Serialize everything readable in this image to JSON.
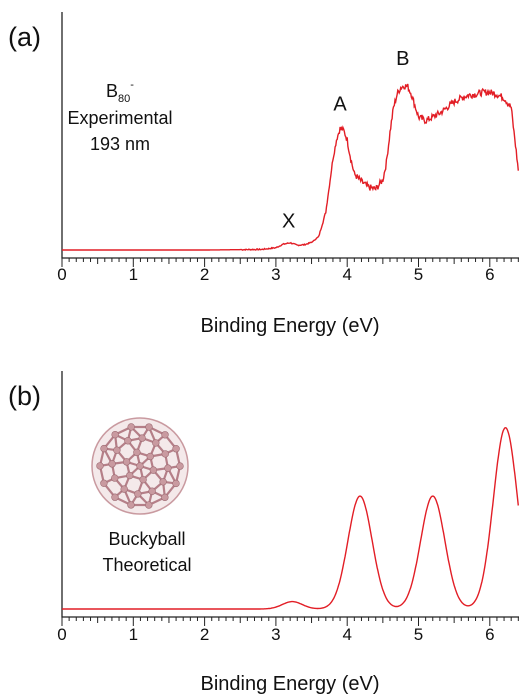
{
  "colors": {
    "curve": "#e21e26",
    "axis": "#222222",
    "bucky_atom": "#c99aa0",
    "bucky_bond": "#b57f88"
  },
  "panels": [
    {
      "panel_label": "(a)",
      "xlabel": "Binding Energy (eV)",
      "annotation": {
        "species_base": "B",
        "species_sub": "80",
        "species_sup": "-",
        "line1": "Experimental",
        "line2": "193 nm"
      },
      "peak_labels": [
        {
          "text": "X",
          "x": 3.18,
          "y": 0.045
        },
        {
          "text": "A",
          "x": 3.9,
          "y": 0.66
        },
        {
          "text": "B",
          "x": 4.78,
          "y": 0.9
        }
      ]
    },
    {
      "panel_label": "(b)",
      "xlabel": "Binding Energy (eV)",
      "annotation": {
        "line1": "Buckyball",
        "line2": "Theoretical"
      },
      "peak_labels": []
    }
  ],
  "chart_data": [
    {
      "type": "line",
      "title": "",
      "xlabel": "Binding Energy (eV)",
      "ylabel": "",
      "xlim": [
        0,
        6.4
      ],
      "ylim": [
        0,
        1
      ],
      "xticks": [
        0,
        1,
        2,
        3,
        4,
        5,
        6
      ],
      "grid": false,
      "series": [
        {
          "x": [
            0,
            1,
            2,
            2.8,
            3.0,
            3.1,
            3.2,
            3.3,
            3.4,
            3.5,
            3.6,
            3.7,
            3.75,
            3.8,
            3.85,
            3.9,
            3.95,
            4.0,
            4.05,
            4.1,
            4.2,
            4.3,
            4.4,
            4.5,
            4.55,
            4.6,
            4.65,
            4.7,
            4.75,
            4.8,
            4.85,
            4.9,
            4.95,
            5.0,
            5.1,
            5.2,
            5.3,
            5.4,
            5.5,
            5.6,
            5.7,
            5.8,
            5.9,
            6.0,
            6.1,
            6.2,
            6.3,
            6.4
          ],
          "y": [
            0.0,
            0.0,
            0.0,
            0.003,
            0.012,
            0.03,
            0.038,
            0.025,
            0.028,
            0.04,
            0.07,
            0.2,
            0.34,
            0.48,
            0.58,
            0.64,
            0.63,
            0.58,
            0.48,
            0.4,
            0.36,
            0.33,
            0.32,
            0.37,
            0.46,
            0.62,
            0.75,
            0.82,
            0.855,
            0.865,
            0.86,
            0.82,
            0.76,
            0.7,
            0.68,
            0.7,
            0.72,
            0.75,
            0.78,
            0.8,
            0.815,
            0.82,
            0.83,
            0.83,
            0.82,
            0.8,
            0.75,
            0.42
          ]
        }
      ]
    },
    {
      "type": "line",
      "title": "",
      "xlabel": "Binding Energy (eV)",
      "ylabel": "",
      "xlim": [
        0,
        6.4
      ],
      "ylim": [
        0,
        1
      ],
      "xticks": [
        0,
        1,
        2,
        3,
        4,
        5,
        6
      ],
      "grid": false,
      "peaks": [
        {
          "center": 3.23,
          "height": 0.04,
          "width": 0.14
        },
        {
          "center": 4.18,
          "height": 0.61,
          "width": 0.17
        },
        {
          "center": 5.2,
          "height": 0.61,
          "width": 0.17
        },
        {
          "center": 6.22,
          "height": 0.98,
          "width": 0.17
        }
      ],
      "series": [
        {
          "x": [
            0,
            3.0,
            3.1,
            3.23,
            3.35,
            3.5,
            3.8,
            4.0,
            4.1,
            4.18,
            4.26,
            4.4,
            4.6,
            4.7,
            4.8,
            5.0,
            5.1,
            5.2,
            5.3,
            5.4,
            5.6,
            5.7,
            5.8,
            6.0,
            6.1,
            6.22,
            6.3,
            6.4
          ],
          "y": [
            0.0,
            0.005,
            0.02,
            0.04,
            0.02,
            0.005,
            0.09,
            0.35,
            0.54,
            0.61,
            0.54,
            0.22,
            0.02,
            0.003,
            0.02,
            0.35,
            0.54,
            0.61,
            0.54,
            0.35,
            0.03,
            0.01,
            0.06,
            0.57,
            0.85,
            0.98,
            0.9,
            0.58
          ]
        }
      ]
    }
  ]
}
